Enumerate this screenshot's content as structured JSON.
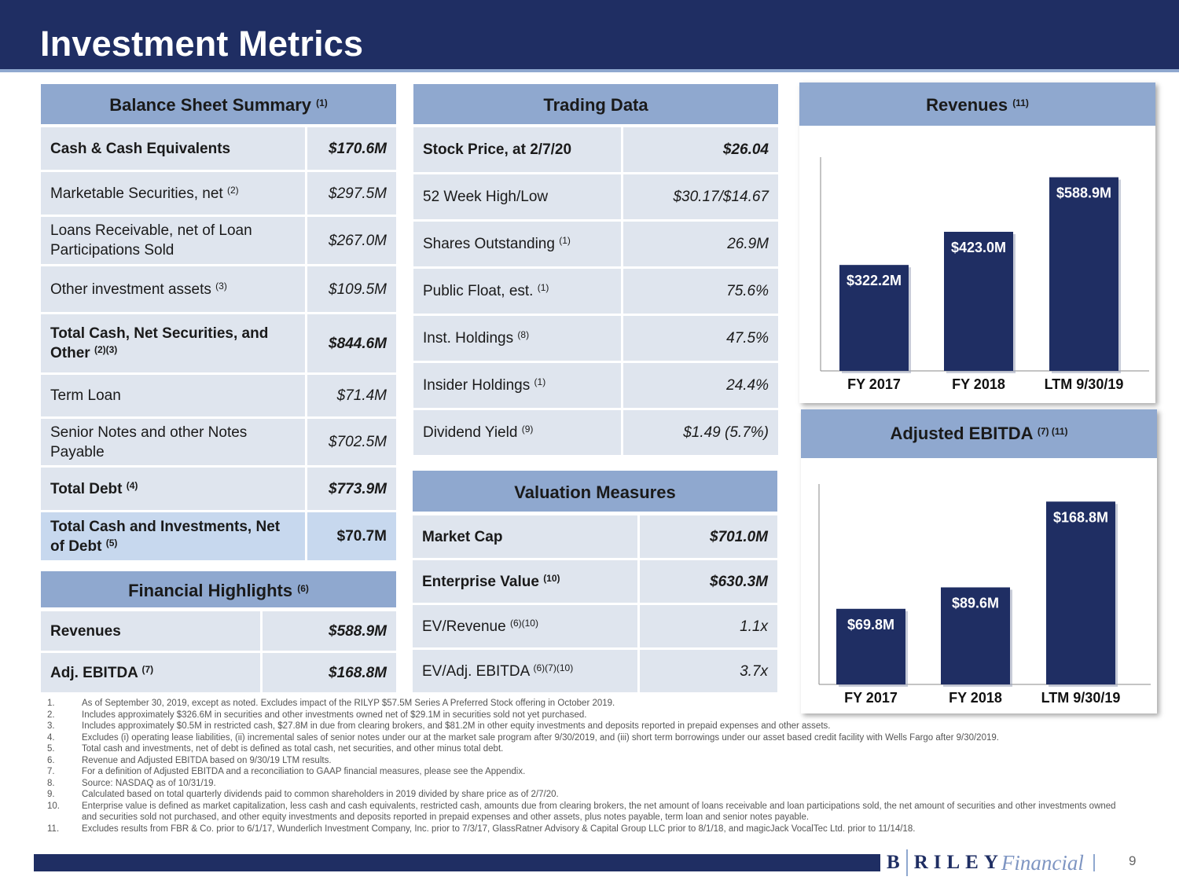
{
  "title": "Investment Metrics",
  "balance_sheet": {
    "header": "Balance Sheet Summary",
    "header_sup": "(1)",
    "rows": [
      {
        "label": "Cash & Cash Equivalents",
        "sup": "",
        "value": "$170.6M"
      },
      {
        "label": "Marketable Securities, net",
        "sup": "(2)",
        "value": "$297.5M"
      },
      {
        "label": "Loans Receivable, net of Loan Participations Sold",
        "sup": "",
        "value": "$267.0M"
      },
      {
        "label": "Other investment assets",
        "sup": "(3)",
        "value": "$109.5M"
      },
      {
        "label": "Total Cash, Net Securities, and Other",
        "sup": "(2)(3)",
        "value": "$844.6M"
      },
      {
        "label": "Term Loan",
        "sup": "",
        "value": "$71.4M"
      },
      {
        "label": "Senior Notes and other Notes Payable",
        "sup": "",
        "value": "$702.5M"
      },
      {
        "label": "Total Debt",
        "sup": "(4)",
        "value": "$773.9M"
      },
      {
        "label": "Total Cash and Investments, Net of Debt",
        "sup": "(5)",
        "value": "$70.7M"
      }
    ]
  },
  "financial_highlights": {
    "header": "Financial Highlights",
    "header_sup": "(6)",
    "rows": [
      {
        "label": "Revenues",
        "sup": "",
        "value": "$588.9M"
      },
      {
        "label": "Adj. EBITDA",
        "sup": "(7)",
        "value": "$168.8M"
      }
    ]
  },
  "trading_data": {
    "header": "Trading Data",
    "rows": [
      {
        "label": "Stock Price, at 2/7/20",
        "sup": "",
        "value": "$26.04"
      },
      {
        "label": "52 Week High/Low",
        "sup": "",
        "value": "$30.17/$14.67"
      },
      {
        "label": "Shares Outstanding",
        "sup": "(1)",
        "value": "26.9M"
      },
      {
        "label": "Public Float, est.",
        "sup": "(1)",
        "value": "75.6%"
      },
      {
        "label": "Inst. Holdings",
        "sup": "(8)",
        "value": "47.5%"
      },
      {
        "label": "Insider Holdings",
        "sup": "(1)",
        "value": "24.4%"
      },
      {
        "label": "Dividend Yield",
        "sup": "(9)",
        "value": "$1.49 (5.7%)"
      }
    ]
  },
  "valuation_measures": {
    "header": "Valuation Measures",
    "rows": [
      {
        "label": "Market Cap",
        "sup": "",
        "value": "$701.0M"
      },
      {
        "label": "Enterprise Value",
        "sup": "(10)",
        "value": "$630.3M"
      },
      {
        "label": "EV/Revenue",
        "sup": "(6)(10)",
        "value": "1.1x"
      },
      {
        "label": "EV/Adj. EBITDA",
        "sup": "(6)(7)(10)",
        "value": "3.7x"
      }
    ]
  },
  "chart_data": [
    {
      "type": "bar",
      "title": "Revenues",
      "title_sup": "(11)",
      "categories": [
        "FY 2017",
        "FY 2018",
        "LTM 9/30/19"
      ],
      "values": [
        322.2,
        423.0,
        588.9
      ],
      "labels": [
        "$322.2M",
        "$423.0M",
        "$588.9M"
      ],
      "ylim": [
        0,
        650
      ],
      "xlabel": "",
      "ylabel": "",
      "color": "#1f2e63"
    },
    {
      "type": "bar",
      "title": "Adjusted EBITDA",
      "title_sup": "(7) (11)",
      "categories": [
        "FY 2017",
        "FY 2018",
        "LTM 9/30/19"
      ],
      "values": [
        69.8,
        89.6,
        168.8
      ],
      "labels": [
        "$69.8M",
        "$89.6M",
        "$168.8M"
      ],
      "ylim": [
        0,
        185
      ],
      "xlabel": "",
      "ylabel": "",
      "color": "#1f2e63"
    }
  ],
  "footnotes": [
    {
      "n": "1.",
      "text": "As of September 30, 2019, except as noted. Excludes impact of the RILYP $57.5M Series A Preferred Stock offering in October 2019."
    },
    {
      "n": "2.",
      "text": "Includes approximately $326.6M in securities and other investments owned net of $29.1M in securities sold not yet purchased."
    },
    {
      "n": "3.",
      "text": "Includes approximately $0.5M in restricted cash, $27.8M in due from clearing brokers, and $81.2M in other equity investments and deposits reported in prepaid expenses and other assets."
    },
    {
      "n": "4.",
      "text": "Excludes (i) operating lease liabilities, (ii) incremental sales of senior notes under our at the market sale program after 9/30/2019, and (iii) short term borrowings under our asset based credit facility with Wells Fargo after 9/30/2019."
    },
    {
      "n": "5.",
      "text": "Total cash and investments, net of debt is defined as total cash, net securities, and other minus total debt."
    },
    {
      "n": "6.",
      "text": "Revenue and Adjusted EBITDA based on 9/30/19 LTM results."
    },
    {
      "n": "7.",
      "text": "For a definition of Adjusted EBITDA and a reconciliation to GAAP financial measures, please see the Appendix."
    },
    {
      "n": "8.",
      "text": "Source: NASDAQ as of 10/31/19."
    },
    {
      "n": "9.",
      "text": "Calculated based on total quarterly dividends paid to common shareholders in 2019 divided by share price as of 2/7/20."
    },
    {
      "n": "10.",
      "text": "Enterprise value is defined as market capitalization, less cash and cash equivalents, restricted cash, amounts due from clearing brokers, the net amount of loans receivable and loan participations sold, the net amount of securities and other investments owned and securities sold not purchased, and other equity investments and deposits reported in prepaid expenses and other assets, plus notes payable, term loan and senior notes payable."
    },
    {
      "n": "11.",
      "text": "Excludes results from FBR & Co. prior to 6/1/17, Wunderlich Investment Company, Inc. prior to 7/3/17, GlassRatner Advisory & Capital Group LLC prior to 8/1/18, and magicJack VocalTec Ltd. prior to 11/14/18."
    }
  ],
  "logo": {
    "b": "B",
    "riley": "RILEY",
    "financial": "Financial"
  },
  "page_number": "9"
}
